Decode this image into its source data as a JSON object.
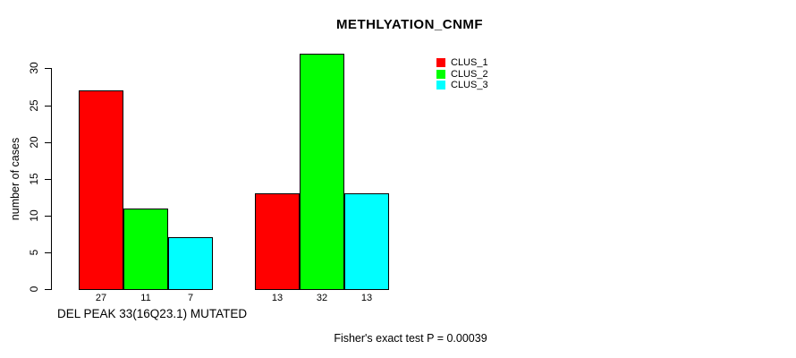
{
  "title": "METHLYATION_CNMF",
  "y_axis": {
    "label": "number of cases",
    "ticks": [
      0,
      5,
      10,
      15,
      20,
      25,
      30
    ]
  },
  "x_axis": {
    "label": "DEL PEAK 33(16Q23.1) MUTATED"
  },
  "legend": {
    "items": [
      {
        "label": "CLUS_1",
        "color": "#ff0000"
      },
      {
        "label": "CLUS_2",
        "color": "#00ff00"
      },
      {
        "label": "CLUS_3",
        "color": "#00ffff"
      }
    ]
  },
  "footer": "Fisher's exact test P = 0.00039",
  "chart_data": {
    "type": "bar",
    "title": "METHLYATION_CNMF",
    "xlabel": "DEL PEAK 33(16Q23.1) MUTATED",
    "ylabel": "number of cases",
    "ylim": [
      0,
      32
    ],
    "y_ticks": [
      0,
      5,
      10,
      15,
      20,
      25,
      30
    ],
    "grid": false,
    "legend_position": "top-right",
    "num_groups": 2,
    "series": [
      {
        "name": "CLUS_1",
        "color": "#ff0000",
        "values": [
          27,
          13
        ]
      },
      {
        "name": "CLUS_2",
        "color": "#00ff00",
        "values": [
          11,
          32
        ]
      },
      {
        "name": "CLUS_3",
        "color": "#00ffff",
        "values": [
          7,
          13
        ]
      }
    ],
    "bar_value_labels": [
      [
        27,
        11,
        7
      ],
      [
        13,
        32,
        13
      ]
    ],
    "annotation": "Fisher's exact test P = 0.00039"
  }
}
